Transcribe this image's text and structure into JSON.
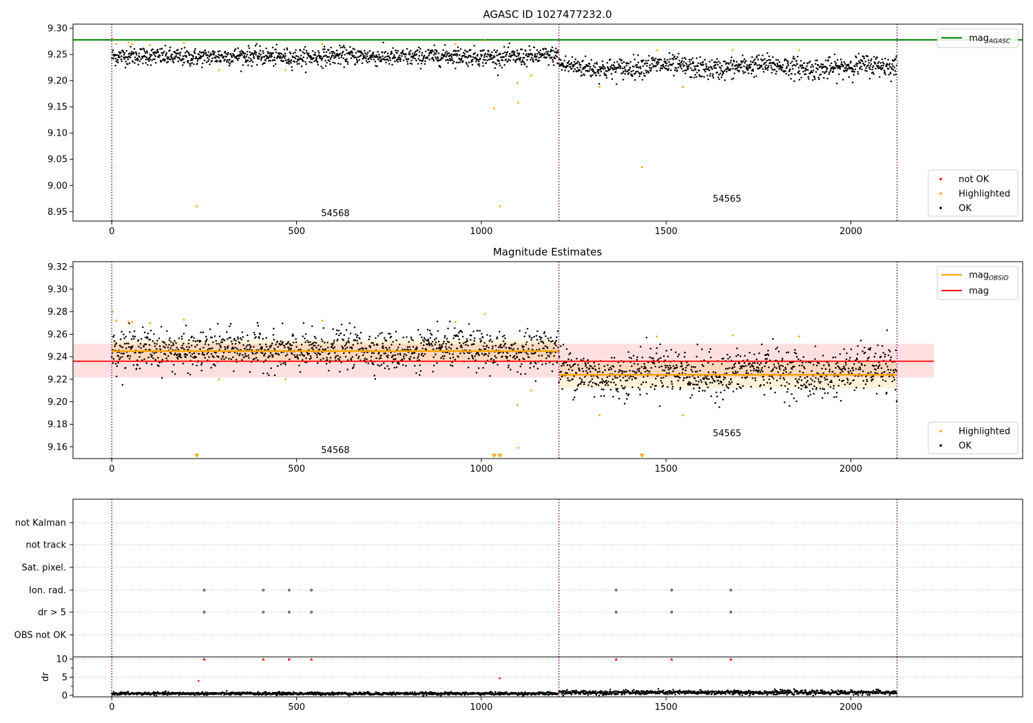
{
  "figure_title": "AGASC ID 1027477232.0",
  "chart_data": [
    {
      "type": "scatter",
      "title": "AGASC ID 1027477232.0",
      "xlim": [
        -105,
        2465
      ],
      "ylim": [
        8.932,
        9.308
      ],
      "xticks": [
        0,
        500,
        1000,
        1500,
        2000
      ],
      "xtick_labels": [
        "0",
        "500",
        "1000",
        "1500",
        "2000"
      ],
      "yticks": [
        8.95,
        9.0,
        9.05,
        9.1,
        9.15,
        9.2,
        9.25,
        9.3
      ],
      "ytick_labels": [
        "8.95",
        "9.00",
        "9.05",
        "9.10",
        "9.15",
        "9.20",
        "9.25",
        "9.30"
      ],
      "obs_boundaries": [
        0,
        1210,
        2125
      ],
      "obs_labels": [
        {
          "text": "54568",
          "x": 605,
          "y": 8.941
        },
        {
          "text": "54565",
          "x": 1665,
          "y": 8.969
        }
      ],
      "reference_line": {
        "name": "mag",
        "subscript": "AGASC",
        "value": 9.278,
        "color": "#008000"
      },
      "legend_lines": [
        {
          "label": "mag",
          "sub": "AGASC",
          "color": "#008000"
        }
      ],
      "legend_points": [
        {
          "label": "not OK",
          "color": "#ff0000"
        },
        {
          "label": "Highlighted",
          "color": "#ffa500"
        },
        {
          "label": "OK",
          "color": "#000000"
        }
      ],
      "ok_model": {
        "segments": [
          {
            "x0": 0,
            "x1": 1210,
            "mean": 9.246,
            "sd": 0.0085
          },
          {
            "x0": 1210,
            "x1": 2125,
            "mean": 9.226,
            "sd": 0.01
          }
        ],
        "n": 2125
      },
      "highlighted": [
        [
          2,
          9.28
        ],
        [
          12,
          9.27
        ],
        [
          45,
          9.273
        ],
        [
          55,
          9.27
        ],
        [
          103,
          9.268
        ],
        [
          195,
          9.272
        ],
        [
          230,
          8.96
        ],
        [
          290,
          9.22
        ],
        [
          470,
          9.22
        ],
        [
          570,
          9.27
        ],
        [
          930,
          9.27
        ],
        [
          1010,
          9.277
        ],
        [
          1035,
          9.147
        ],
        [
          1050,
          8.96
        ],
        [
          1098,
          9.196
        ],
        [
          1100,
          9.158
        ],
        [
          1135,
          9.21
        ],
        [
          1320,
          9.188
        ],
        [
          1435,
          9.035
        ],
        [
          1475,
          9.258
        ],
        [
          1545,
          9.188
        ],
        [
          1680,
          9.258
        ],
        [
          1860,
          9.258
        ]
      ]
    },
    {
      "type": "scatter",
      "title": "Magnitude Estimates",
      "xlim": [
        -105,
        2465
      ],
      "ylim": [
        9.1495,
        9.3245
      ],
      "xticks": [
        0,
        500,
        1000,
        1500,
        2000
      ],
      "xtick_labels": [
        "0",
        "500",
        "1000",
        "1500",
        "2000"
      ],
      "yticks": [
        9.16,
        9.18,
        9.2,
        9.22,
        9.24,
        9.26,
        9.28,
        9.3,
        9.32
      ],
      "ytick_labels": [
        "9.16",
        "9.18",
        "9.20",
        "9.22",
        "9.24",
        "9.26",
        "9.28",
        "9.30",
        "9.32"
      ],
      "obs_boundaries": [
        0,
        1210,
        2125
      ],
      "obs_labels": [
        {
          "text": "54568",
          "x": 605,
          "y": 9.1545
        },
        {
          "text": "54565",
          "x": 1665,
          "y": 9.1695
        }
      ],
      "mag": {
        "value": 9.236,
        "band": [
          9.2215,
          9.2515
        ],
        "x_range": [
          -105,
          2225
        ],
        "color": "#ff0000"
      },
      "mag_obsid": [
        {
          "x0": 0,
          "x1": 1210,
          "value": 9.245,
          "band": [
            9.235,
            9.255
          ]
        },
        {
          "x0": 1210,
          "x1": 2125,
          "value": 9.224,
          "band": [
            9.212,
            9.236
          ]
        }
      ],
      "legend_lines": [
        {
          "label": "mag",
          "sub": "OBSID",
          "color": "#ffa500"
        },
        {
          "label": "mag",
          "sub": "",
          "color": "#ff0000"
        }
      ],
      "legend_points": [
        {
          "label": "Highlighted",
          "color": "#ffa500"
        },
        {
          "label": "OK",
          "color": "#000000"
        }
      ],
      "ok_model": {
        "segments": [
          {
            "x0": 0,
            "x1": 1210,
            "mean": 9.246,
            "sd": 0.0085
          },
          {
            "x0": 1210,
            "x1": 2125,
            "mean": 9.226,
            "sd": 0.01
          }
        ],
        "n": 2125
      },
      "highlighted": [
        [
          2,
          9.28
        ],
        [
          12,
          9.272
        ],
        [
          45,
          9.271
        ],
        [
          55,
          9.271
        ],
        [
          103,
          9.27
        ],
        [
          195,
          9.273
        ],
        [
          290,
          9.22
        ],
        [
          470,
          9.22
        ],
        [
          570,
          9.272
        ],
        [
          930,
          9.271
        ],
        [
          1010,
          9.278
        ],
        [
          1098,
          9.197
        ],
        [
          1100,
          9.159
        ],
        [
          1135,
          9.21
        ],
        [
          1320,
          9.188
        ],
        [
          1475,
          9.258
        ],
        [
          1545,
          9.188
        ],
        [
          1680,
          9.259
        ],
        [
          1860,
          9.258
        ]
      ],
      "below_range_markers": [
        230,
        1035,
        1050,
        1435
      ]
    },
    {
      "type": "scatter",
      "title": "",
      "xlim": [
        -105,
        2465
      ],
      "categories": [
        "not Kalman",
        "not track",
        "Sat. pixel.",
        "Ion. rad.",
        "dr > 5",
        "OBS not OK"
      ],
      "flag_points": {
        "Ion. rad.": [
          250,
          410,
          480,
          540,
          1365,
          1515,
          1675
        ],
        "dr > 5": [
          250,
          410,
          480,
          540,
          1365,
          1515,
          1675
        ]
      },
      "obs_boundaries": [
        0,
        1210,
        2125
      ]
    },
    {
      "type": "scatter",
      "title": "",
      "ylabel": "dr",
      "xlim": [
        -105,
        2465
      ],
      "ylim": [
        -0.4,
        10.6
      ],
      "xticks": [
        0,
        500,
        1000,
        1500,
        2000
      ],
      "xtick_labels": [
        "0",
        "500",
        "1000",
        "1500",
        "2000"
      ],
      "yticks": [
        0,
        5,
        10
      ],
      "ytick_labels": [
        "0",
        "5",
        "10"
      ],
      "clipped_markers": [
        250,
        410,
        480,
        540,
        1365,
        1515,
        1675
      ],
      "not_ok_points": [
        [
          235,
          4.0
        ],
        [
          1050,
          4.7
        ]
      ],
      "ok_model": {
        "segments": [
          {
            "x0": 0,
            "x1": 1210,
            "mean": 0.5,
            "sd": 0.2
          },
          {
            "x0": 1210,
            "x1": 2125,
            "mean": 0.8,
            "sd": 0.3
          }
        ],
        "n": 2125
      },
      "obs_boundaries": [
        0,
        1210,
        2125
      ]
    }
  ]
}
